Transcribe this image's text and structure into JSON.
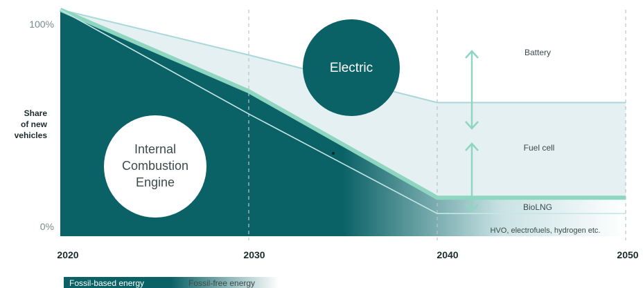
{
  "chart_data": {
    "type": "area",
    "x_ticks": [
      "2020",
      "2030",
      "2040",
      "2050"
    ],
    "y_ticks": [
      "100%",
      "0%"
    ],
    "ylabel": [
      "Share",
      "of new",
      "vehicles"
    ],
    "xlim": [
      2020,
      2050
    ],
    "ylim": [
      0,
      100
    ],
    "grid": "dashed vertical lines at 2030, 2040, 2050",
    "series": [
      {
        "name": "Internal Combustion Engine",
        "x": [
          2020,
          2030,
          2040,
          2050
        ],
        "values": [
          100,
          54,
          10,
          10
        ]
      },
      {
        "name": "Electric",
        "x": [
          2020,
          2030,
          2040,
          2050
        ],
        "values": [
          100,
          64,
          17,
          17
        ]
      },
      {
        "name": "Battery",
        "x": [
          2020,
          2030,
          2040,
          2050
        ],
        "values": [
          100,
          80,
          59,
          59
        ]
      }
    ],
    "annotations": {
      "electric": "Electric",
      "ice": [
        "Internal",
        "Combustion",
        "Engine"
      ],
      "battery": "Battery",
      "fuel_cell": "Fuel cell",
      "biolng": "BioLNG",
      "hvo": "HVO, electrofuels, hydrogen etc."
    },
    "legend": {
      "fossil": "Fossil-based energy",
      "fossil_free": "Fossil-free energy",
      "placement": "bottom-left"
    },
    "colors": {
      "dark_teal": "#0b6266",
      "mid_teal": "#3f8e90",
      "light_teal": "#8fd6c1",
      "line_light": "#a9d7da",
      "grid": "#b8c4c4"
    }
  }
}
